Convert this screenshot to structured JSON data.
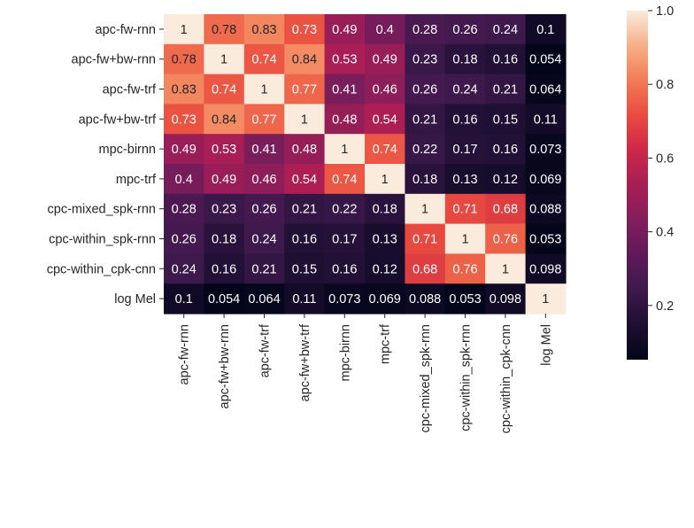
{
  "chart_data": {
    "type": "heatmap",
    "row_labels": [
      "apc-fw-rnn",
      "apc-fw+bw-rnn",
      "apc-fw-trf",
      "apc-fw+bw-trf",
      "mpc-birnn",
      "mpc-trf",
      "cpc-mixed_spk-rnn",
      "cpc-within_spk-rnn",
      "cpc-within_cpk-cnn",
      "log Mel"
    ],
    "col_labels": [
      "apc-fw-rnn",
      "apc-fw+bw-rnn",
      "apc-fw-trf",
      "apc-fw+bw-trf",
      "mpc-birnn",
      "mpc-trf",
      "cpc-mixed_spk-rnn",
      "cpc-within_spk-rnn",
      "cpc-within_cpk-cnn",
      "log Mel"
    ],
    "values": [
      [
        1,
        0.78,
        0.83,
        0.73,
        0.49,
        0.4,
        0.28,
        0.26,
        0.24,
        0.1
      ],
      [
        0.78,
        1,
        0.74,
        0.84,
        0.53,
        0.49,
        0.23,
        0.18,
        0.16,
        0.054
      ],
      [
        0.83,
        0.74,
        1,
        0.77,
        0.41,
        0.46,
        0.26,
        0.24,
        0.21,
        0.064
      ],
      [
        0.73,
        0.84,
        0.77,
        1,
        0.48,
        0.54,
        0.21,
        0.16,
        0.15,
        0.11
      ],
      [
        0.49,
        0.53,
        0.41,
        0.48,
        1,
        0.74,
        0.22,
        0.17,
        0.16,
        0.073
      ],
      [
        0.4,
        0.49,
        0.46,
        0.54,
        0.74,
        1,
        0.18,
        0.13,
        0.12,
        0.069
      ],
      [
        0.28,
        0.23,
        0.26,
        0.21,
        0.22,
        0.18,
        1,
        0.71,
        0.68,
        0.088
      ],
      [
        0.26,
        0.18,
        0.24,
        0.16,
        0.17,
        0.13,
        0.71,
        1,
        0.76,
        0.053
      ],
      [
        0.24,
        0.16,
        0.21,
        0.15,
        0.16,
        0.12,
        0.68,
        0.76,
        1,
        0.098
      ],
      [
        0.1,
        0.054,
        0.064,
        0.11,
        0.073,
        0.069,
        0.088,
        0.053,
        0.098,
        1
      ]
    ],
    "cell_labels": [
      [
        "1",
        "0.78",
        "0.83",
        "0.73",
        "0.49",
        "0.4",
        "0.28",
        "0.26",
        "0.24",
        "0.1"
      ],
      [
        "0.78",
        "1",
        "0.74",
        "0.84",
        "0.53",
        "0.49",
        "0.23",
        "0.18",
        "0.16",
        "0.054"
      ],
      [
        "0.83",
        "0.74",
        "1",
        "0.77",
        "0.41",
        "0.46",
        "0.26",
        "0.24",
        "0.21",
        "0.064"
      ],
      [
        "0.73",
        "0.84",
        "0.77",
        "1",
        "0.48",
        "0.54",
        "0.21",
        "0.16",
        "0.15",
        "0.11"
      ],
      [
        "0.49",
        "0.53",
        "0.41",
        "0.48",
        "1",
        "0.74",
        "0.22",
        "0.17",
        "0.16",
        "0.073"
      ],
      [
        "0.4",
        "0.49",
        "0.46",
        "0.54",
        "0.74",
        "1",
        "0.18",
        "0.13",
        "0.12",
        "0.069"
      ],
      [
        "0.28",
        "0.23",
        "0.26",
        "0.21",
        "0.22",
        "0.18",
        "1",
        "0.71",
        "0.68",
        "0.088"
      ],
      [
        "0.26",
        "0.18",
        "0.24",
        "0.16",
        "0.17",
        "0.13",
        "0.71",
        "1",
        "0.76",
        "0.053"
      ],
      [
        "0.24",
        "0.16",
        "0.21",
        "0.15",
        "0.16",
        "0.12",
        "0.68",
        "0.76",
        "1",
        "0.098"
      ],
      [
        "0.1",
        "0.054",
        "0.064",
        "0.11",
        "0.073",
        "0.069",
        "0.088",
        "0.053",
        "0.098",
        "1"
      ]
    ],
    "vmin": 0.053,
    "vmax": 1,
    "colormap": "rocket",
    "colorbar": {
      "ticks": [
        0.2,
        0.4,
        0.6,
        0.8,
        1.0
      ],
      "tick_labels": [
        "0.2",
        "0.4",
        "0.6",
        "0.8",
        "1.0"
      ]
    },
    "title": "",
    "xlabel": "",
    "ylabel": "",
    "grid": false
  }
}
